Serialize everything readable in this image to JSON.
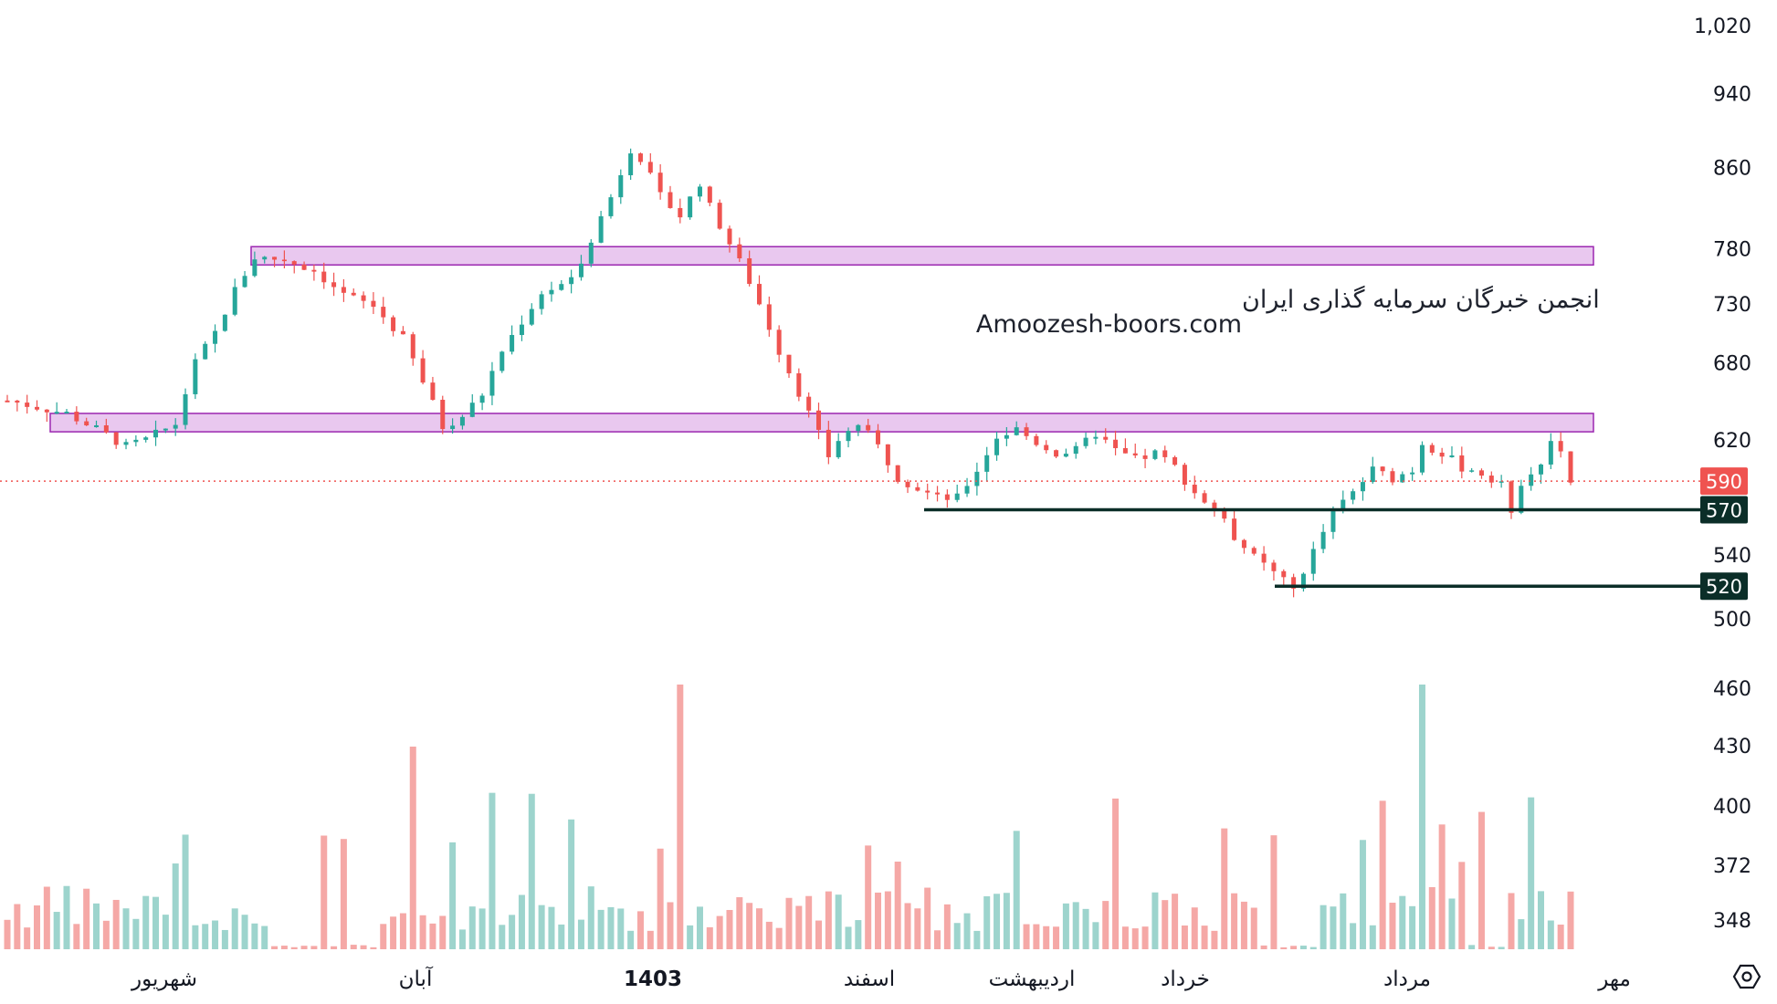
{
  "watermark": {
    "line1": "انجمن خبرگان سرمایه گذاری ایران",
    "line2": "Amoozesh-boors.com"
  },
  "colors": {
    "up": "#26a69a",
    "down": "#ef5350",
    "up_volume": "#9dd4cd",
    "down_volume": "#f5a8a6",
    "zone_fill": "#e9c8ef",
    "zone_stroke": "#9c27b0",
    "support_line": "#0b2e28",
    "current_price_line": "#ef5350",
    "text": "#131722"
  },
  "chart_data": {
    "type": "candlestick",
    "price_axis": {
      "ticks": [
        "1,020",
        "940",
        "860",
        "780",
        "730",
        "680",
        "620",
        "540",
        "500"
      ],
      "scale": "log"
    },
    "volume_axis": {
      "ticks": [
        "460",
        "430",
        "400",
        "372",
        "348"
      ]
    },
    "x_labels": [
      "شهریور",
      "آبان",
      "1403",
      "اسفند",
      "اردیبهشت",
      "خرداد",
      "مرداد",
      "مهر"
    ],
    "bold_x_label": "1403",
    "current_price": {
      "value": 590,
      "label": "590"
    },
    "support_levels": [
      {
        "value": 570,
        "label": "570"
      },
      {
        "value": 520,
        "label": "520"
      }
    ],
    "resistance_zones": [
      {
        "low": 765,
        "high": 782
      },
      {
        "low": 626,
        "high": 640
      }
    ],
    "close_path": [
      [
        0,
        650
      ],
      [
        3,
        645
      ],
      [
        6,
        640
      ],
      [
        9,
        628
      ],
      [
        12,
        615
      ],
      [
        14,
        620
      ],
      [
        17,
        632
      ],
      [
        19,
        680
      ],
      [
        21,
        705
      ],
      [
        23,
        742
      ],
      [
        25,
        772
      ],
      [
        28,
        770
      ],
      [
        31,
        760
      ],
      [
        34,
        738
      ],
      [
        37,
        728
      ],
      [
        40,
        700
      ],
      [
        42,
        665
      ],
      [
        44,
        630
      ],
      [
        46,
        638
      ],
      [
        48,
        655
      ],
      [
        50,
        690
      ],
      [
        52,
        715
      ],
      [
        54,
        740
      ],
      [
        57,
        750
      ],
      [
        59,
        790
      ],
      [
        61,
        830
      ],
      [
        63,
        880
      ],
      [
        64,
        870
      ],
      [
        66,
        830
      ],
      [
        68,
        812
      ],
      [
        70,
        845
      ],
      [
        71,
        820
      ],
      [
        73,
        785
      ],
      [
        75,
        750
      ],
      [
        78,
        690
      ],
      [
        81,
        640
      ],
      [
        83,
        608
      ],
      [
        84,
        620
      ],
      [
        86,
        632
      ],
      [
        88,
        615
      ],
      [
        90,
        593
      ],
      [
        92,
        585
      ],
      [
        94,
        578
      ],
      [
        96,
        578
      ],
      [
        98,
        598
      ],
      [
        100,
        622
      ],
      [
        102,
        628
      ],
      [
        104,
        618
      ],
      [
        106,
        610
      ],
      [
        108,
        612
      ],
      [
        110,
        625
      ],
      [
        112,
        612
      ],
      [
        114,
        605
      ],
      [
        116,
        610
      ],
      [
        118,
        600
      ],
      [
        120,
        582
      ],
      [
        122,
        570
      ],
      [
        124,
        552
      ],
      [
        126,
        538
      ],
      [
        128,
        528
      ],
      [
        130,
        518
      ],
      [
        132,
        542
      ],
      [
        134,
        568
      ],
      [
        136,
        582
      ],
      [
        138,
        598
      ],
      [
        140,
        592
      ],
      [
        142,
        598
      ],
      [
        143,
        618
      ],
      [
        145,
        610
      ],
      [
        147,
        600
      ],
      [
        149,
        595
      ],
      [
        151,
        590
      ],
      [
        152,
        565
      ],
      [
        153,
        590
      ],
      [
        155,
        605
      ],
      [
        156,
        620
      ],
      [
        157,
        612
      ],
      [
        158,
        590
      ]
    ]
  }
}
